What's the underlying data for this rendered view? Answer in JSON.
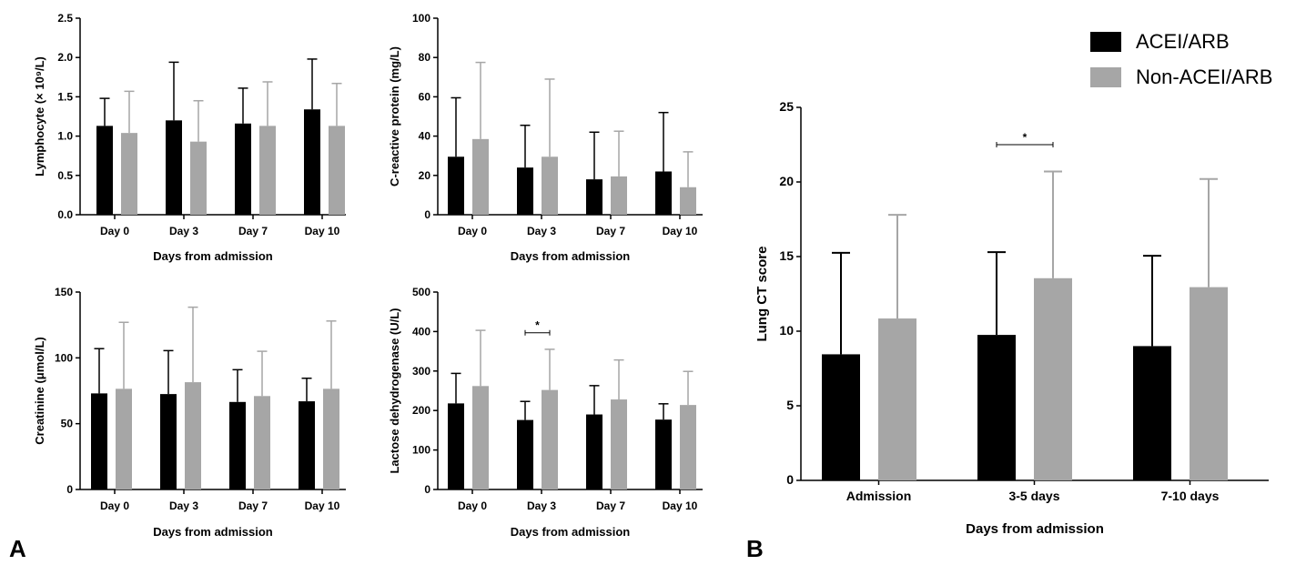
{
  "colors": {
    "ACEI/ARB": "#000000",
    "Non-ACEI/ARB": "#a6a6a6"
  },
  "legend": {
    "entries": [
      {
        "label": "ACEI/ARB",
        "color": "#000000"
      },
      {
        "label": "Non-ACEI/ARB",
        "color": "#a6a6a6"
      }
    ],
    "placement": "top-right"
  },
  "panel_labels": [
    "A",
    "B"
  ],
  "chart_data": [
    {
      "type": "bar",
      "xlabel": "Days from admission",
      "ylabel": "Lymphocyte (× 10⁹/L)",
      "categories": [
        "Day 0",
        "Day 3",
        "Day 7",
        "Day 10"
      ],
      "ylim": [
        0,
        2.5
      ],
      "yticks": [
        0.0,
        0.5,
        1.0,
        1.5,
        2.0,
        2.5
      ],
      "ytick_labels": [
        "0.0",
        "0.5",
        "1.0",
        "1.5",
        "2.0",
        "2.5"
      ],
      "series": [
        {
          "name": "ACEI/ARB",
          "values": [
            1.13,
            1.2,
            1.16,
            1.34
          ],
          "error": [
            0.35,
            0.74,
            0.45,
            0.64
          ]
        },
        {
          "name": "Non-ACEI/ARB",
          "values": [
            1.04,
            0.93,
            1.13,
            1.13
          ],
          "error": [
            0.53,
            0.52,
            0.56,
            0.54
          ]
        }
      ],
      "annotations": []
    },
    {
      "type": "bar",
      "xlabel": "Days from admission",
      "ylabel": "C-reactive protein (mg/L)",
      "categories": [
        "Day 0",
        "Day 3",
        "Day 7",
        "Day 10"
      ],
      "ylim": [
        0,
        100
      ],
      "yticks": [
        0,
        20,
        40,
        60,
        80,
        100
      ],
      "ytick_labels": [
        "0",
        "20",
        "40",
        "60",
        "80",
        "100"
      ],
      "series": [
        {
          "name": "ACEI/ARB",
          "values": [
            29.5,
            24.0,
            18.0,
            22.0
          ],
          "error": [
            30.0,
            21.5,
            24.0,
            30.0
          ]
        },
        {
          "name": "Non-ACEI/ARB",
          "values": [
            38.5,
            29.5,
            19.5,
            14.0
          ],
          "error": [
            39.0,
            39.5,
            23.0,
            18.0
          ]
        }
      ],
      "annotations": []
    },
    {
      "type": "bar",
      "xlabel": "Days from admission",
      "ylabel": "Creatinine (μmol/L)",
      "categories": [
        "Day 0",
        "Day 3",
        "Day 7",
        "Day 10"
      ],
      "ylim": [
        0,
        150
      ],
      "yticks": [
        0,
        50,
        100,
        150
      ],
      "ytick_labels": [
        "0",
        "50",
        "100",
        "150"
      ],
      "series": [
        {
          "name": "ACEI/ARB",
          "values": [
            73,
            72.5,
            66.5,
            67
          ],
          "error": [
            34,
            33,
            24.5,
            17.5
          ]
        },
        {
          "name": "Non-ACEI/ARB",
          "values": [
            76.5,
            81.5,
            71,
            76.5
          ],
          "error": [
            50.5,
            57,
            34,
            51.5
          ]
        }
      ],
      "annotations": []
    },
    {
      "type": "bar",
      "xlabel": "Days from admission",
      "ylabel": "Lactose dehydrogenase (U/L)",
      "categories": [
        "Day 0",
        "Day 3",
        "Day 7",
        "Day 10"
      ],
      "ylim": [
        0,
        500
      ],
      "yticks": [
        0,
        100,
        200,
        300,
        400,
        500
      ],
      "ytick_labels": [
        "0",
        "100",
        "200",
        "300",
        "400",
        "500"
      ],
      "series": [
        {
          "name": "ACEI/ARB",
          "values": [
            218,
            176,
            190,
            177
          ],
          "error": [
            76,
            47,
            73,
            40
          ]
        },
        {
          "name": "Non-ACEI/ARB",
          "values": [
            262,
            252,
            228,
            214
          ],
          "error": [
            141,
            103,
            100,
            85
          ]
        }
      ],
      "annotations": [
        {
          "text": "*",
          "category": "Day 3",
          "y": 397
        }
      ]
    },
    {
      "type": "bar",
      "xlabel": "Days from admission",
      "ylabel": "Lung CT score",
      "categories": [
        "Admission",
        "3-5 days",
        "7-10 days"
      ],
      "ylim": [
        0,
        25
      ],
      "yticks": [
        0,
        5,
        10,
        15,
        20,
        25
      ],
      "ytick_labels": [
        "0",
        "5",
        "10",
        "15",
        "20",
        "25"
      ],
      "series": [
        {
          "name": "ACEI/ARB",
          "values": [
            8.45,
            9.75,
            9.0
          ],
          "error": [
            6.8,
            5.55,
            6.05
          ]
        },
        {
          "name": "Non-ACEI/ARB",
          "values": [
            10.85,
            13.55,
            12.95
          ],
          "error": [
            6.95,
            7.15,
            7.25
          ]
        }
      ],
      "annotations": [
        {
          "text": "*",
          "category": "3-5 days",
          "y": 22.5
        }
      ]
    }
  ]
}
